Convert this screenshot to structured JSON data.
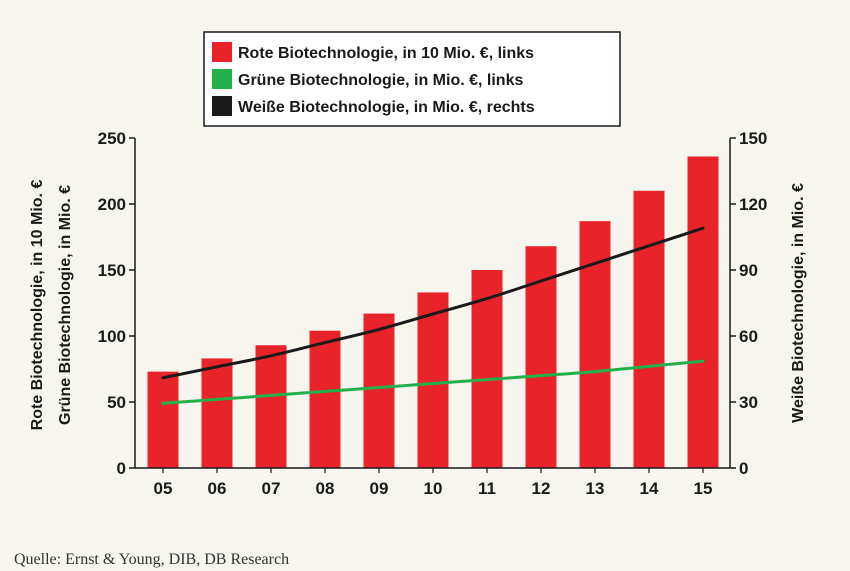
{
  "chart_data": {
    "type": "bar",
    "categories": [
      "05",
      "06",
      "07",
      "08",
      "09",
      "10",
      "11",
      "12",
      "13",
      "14",
      "15"
    ],
    "series": [
      {
        "name": "Rote Biotechnologie, in  10 Mio. €, links",
        "type": "bar",
        "axis": "left",
        "color": "#e8232a",
        "values": [
          73,
          83,
          93,
          104,
          117,
          133,
          150,
          168,
          187,
          210,
          236
        ]
      },
      {
        "name": "Grüne Biotechnologie, in Mio. €, links",
        "type": "line",
        "axis": "left",
        "color": "#22b04b",
        "values": [
          49,
          52,
          55,
          58,
          61,
          64,
          67,
          70,
          73,
          77,
          81
        ]
      },
      {
        "name": "Weiße Biotechnologie, in Mio. €, rechts",
        "type": "line",
        "axis": "right",
        "color": "#1a1a1a",
        "values": [
          41,
          46,
          51,
          57,
          63,
          70,
          77,
          85,
          93,
          101,
          109
        ]
      }
    ],
    "y_left": {
      "labels": [
        "Rote Biotechnologie, in  10 Mio. €",
        "Grüne Biotechnologie, in Mio. €"
      ],
      "range": [
        0,
        250
      ],
      "ticks": [
        0,
        50,
        100,
        150,
        200,
        250
      ]
    },
    "y_right": {
      "label": "Weiße Biotechnologie, in Mio. €",
      "range": [
        0,
        150
      ],
      "ticks": [
        0,
        30,
        60,
        90,
        120,
        150
      ]
    },
    "legend_position": "top-center",
    "grid": false
  },
  "source": "Quelle: Ernst & Young, DIB, DB Research"
}
